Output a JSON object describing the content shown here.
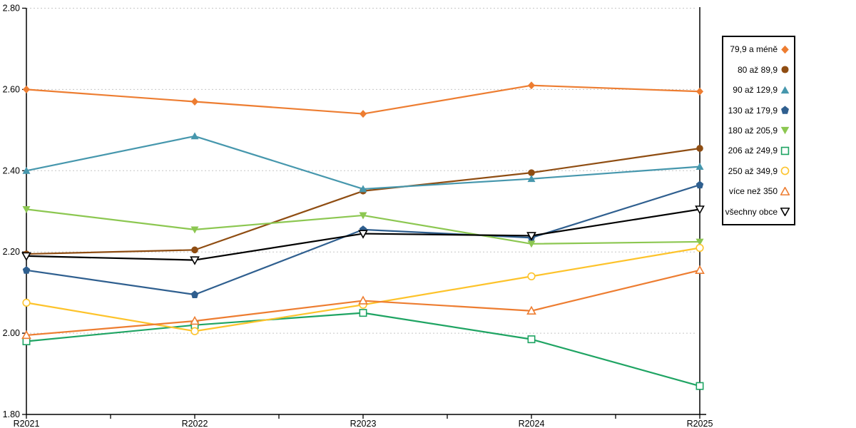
{
  "chart_data": {
    "type": "line",
    "title": "",
    "xlabel": "",
    "ylabel": "",
    "categories": [
      "R2021",
      "R2022",
      "R2023",
      "R2024",
      "R2025"
    ],
    "ylim": [
      1.8,
      2.8
    ],
    "ytick_step": 0.2,
    "ytick_labels": [
      "1.80",
      "2.00",
      "2.20",
      "2.40",
      "2.60",
      "2.80"
    ],
    "grid": "horizontal-dotted",
    "grid_color": "#c6c6c6",
    "axis_color": "#000000",
    "legend_position": "right",
    "series": [
      {
        "name": "79,9 a méně",
        "color": "#ED7D31",
        "marker": "diamond",
        "filled": true,
        "values": [
          2.6,
          2.57,
          2.54,
          2.61,
          2.595
        ]
      },
      {
        "name": "80 až 89,9",
        "color": "#8F4D12",
        "marker": "circle",
        "filled": true,
        "values": [
          2.195,
          2.205,
          2.35,
          2.395,
          2.455
        ]
      },
      {
        "name": "90 až 129,9",
        "color": "#4697AD",
        "marker": "triangle-up",
        "filled": true,
        "values": [
          2.4,
          2.485,
          2.355,
          2.38,
          2.41
        ]
      },
      {
        "name": "130 až 179,9",
        "color": "#2F5F8F",
        "marker": "pentagon",
        "filled": true,
        "values": [
          2.155,
          2.095,
          2.255,
          2.235,
          2.365
        ]
      },
      {
        "name": "180 až 205,9",
        "color": "#8CC751",
        "marker": "triangle-down",
        "filled": true,
        "values": [
          2.305,
          2.255,
          2.29,
          2.22,
          2.225
        ]
      },
      {
        "name": "206 až 249,9",
        "color": "#1FA463",
        "marker": "square",
        "filled": false,
        "values": [
          1.98,
          2.02,
          2.05,
          1.985,
          1.87
        ]
      },
      {
        "name": "250 až 349,9",
        "color": "#FDC32B",
        "marker": "circle",
        "filled": false,
        "values": [
          2.075,
          2.005,
          2.07,
          2.14,
          2.21
        ]
      },
      {
        "name": "více než 350",
        "color": "#ED7D31",
        "marker": "triangle-up",
        "filled": false,
        "values": [
          1.995,
          2.03,
          2.08,
          2.055,
          2.155
        ]
      },
      {
        "name": "všechny obce",
        "color": "#000000",
        "marker": "triangle-down",
        "filled": false,
        "values": [
          2.19,
          2.18,
          2.245,
          2.24,
          2.305
        ]
      }
    ]
  }
}
